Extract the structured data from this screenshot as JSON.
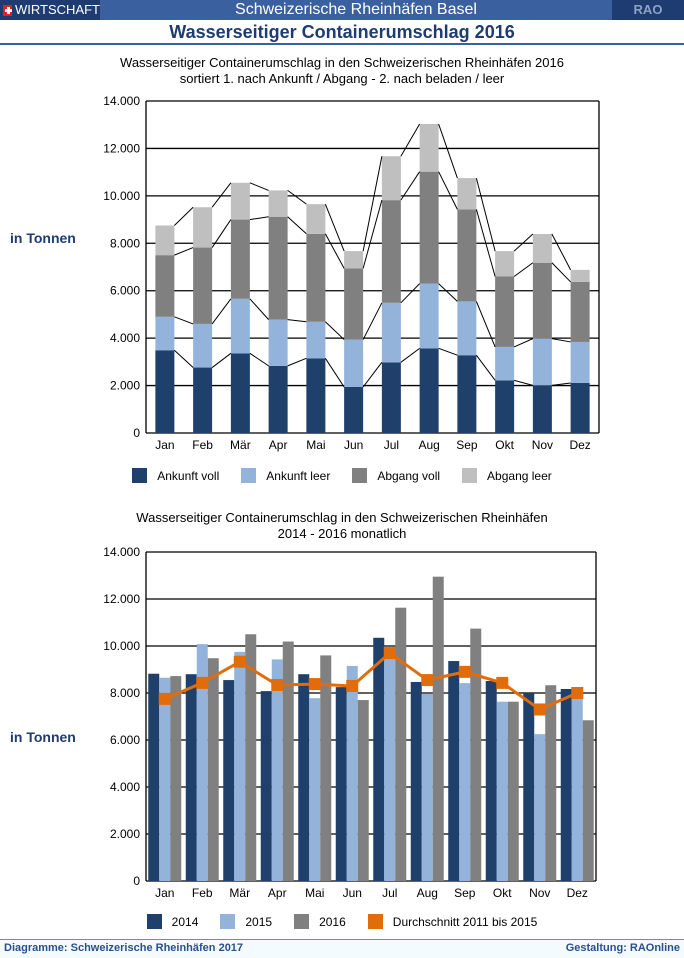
{
  "header": {
    "brand_label": "WIRTSCHAFT",
    "site_title": "Schweizerische Rheinhäfen Basel",
    "rao_label": "RAO",
    "page_title": "Wasserseitiger Containerumschlag 2016"
  },
  "unit_label": "in Tonnen",
  "colors": {
    "ankunft_voll": "#1f406b",
    "ankunft_leer": "#93b3da",
    "abgang_voll": "#808080",
    "abgang_leer": "#bfbfbf",
    "y2014": "#1f406b",
    "y2015": "#93b3da",
    "y2016": "#808080",
    "average": "#e36c0a"
  },
  "chart_data": [
    {
      "type": "bar",
      "stacked": true,
      "title": "Wasserseitiger Containerumschlag in den Schweizerischen Rheinhäfen 2016",
      "subtitle": "sortiert 1. nach Ankunft / Abgang - 2. nach beladen / leer",
      "xlabel": "",
      "ylabel": "in Tonnen",
      "ylim": [
        0,
        14000
      ],
      "yticks": [
        0,
        2000,
        4000,
        6000,
        8000,
        10000,
        12000,
        14000
      ],
      "ytick_labels": [
        "0",
        "2.000",
        "4.000",
        "6.000",
        "8.000",
        "10.000",
        "12.000",
        "14.000"
      ],
      "grid": true,
      "legend_position": "bottom",
      "categories": [
        "Jan",
        "Feb",
        "Mär",
        "Apr",
        "Mai",
        "Jun",
        "Jul",
        "Aug",
        "Sep",
        "Okt",
        "Nov",
        "Dez"
      ],
      "series": [
        {
          "name": "Ankunft voll",
          "values": [
            3490,
            2760,
            3360,
            2830,
            3150,
            1940,
            2980,
            3570,
            3280,
            2220,
            2010,
            2110
          ]
        },
        {
          "name": "Ankunft leer",
          "values": [
            1410,
            1840,
            2300,
            1950,
            1540,
            2000,
            2510,
            2730,
            2270,
            1410,
            1970,
            1730
          ]
        },
        {
          "name": "Abgang voll",
          "values": [
            2600,
            3220,
            3340,
            4340,
            3710,
            3000,
            4330,
            4720,
            3880,
            2970,
            3200,
            2530
          ]
        },
        {
          "name": "Abgang leer",
          "values": [
            1250,
            1700,
            1550,
            1110,
            1250,
            730,
            1850,
            2010,
            1320,
            1070,
            1210,
            510
          ]
        }
      ]
    },
    {
      "type": "bar",
      "stacked": false,
      "title": "Wasserseitiger Containerumschlag in den Schweizerischen Rheinhäfen",
      "subtitle": "2014 - 2016 monatlich",
      "xlabel": "",
      "ylabel": "in Tonnen",
      "ylim": [
        0,
        14000
      ],
      "yticks": [
        0,
        2000,
        4000,
        6000,
        8000,
        10000,
        12000,
        14000
      ],
      "ytick_labels": [
        "0",
        "2.000",
        "4.000",
        "6.000",
        "8.000",
        "10.000",
        "12.000",
        "14.000"
      ],
      "grid": true,
      "legend_position": "bottom",
      "categories": [
        "Jan",
        "Feb",
        "Mär",
        "Apr",
        "Mai",
        "Jun",
        "Jul",
        "Aug",
        "Sep",
        "Okt",
        "Nov",
        "Dez"
      ],
      "series": [
        {
          "name": "2014",
          "type": "bar",
          "values": [
            8820,
            8800,
            8550,
            8080,
            8800,
            8250,
            10350,
            8470,
            9360,
            8510,
            7970,
            8170
          ]
        },
        {
          "name": "2015",
          "type": "bar",
          "values": [
            8650,
            10080,
            9750,
            9430,
            7780,
            9150,
            9550,
            7960,
            8420,
            7630,
            6250,
            7760
          ]
        },
        {
          "name": "2016",
          "type": "bar",
          "values": [
            8720,
            9480,
            10500,
            10190,
            9600,
            7700,
            11630,
            12950,
            10740,
            7630,
            8330,
            6840
          ]
        },
        {
          "name": "Durchschnitt 2011 bis 2015",
          "type": "line",
          "values": [
            7750,
            8430,
            9330,
            8340,
            8380,
            8300,
            9700,
            8550,
            8900,
            8430,
            7300,
            8000
          ]
        }
      ]
    }
  ],
  "footer": {
    "left": "Diagramme: Schweizerische Rheinhäfen 2017",
    "right": "Gestaltung: RAOnline"
  }
}
